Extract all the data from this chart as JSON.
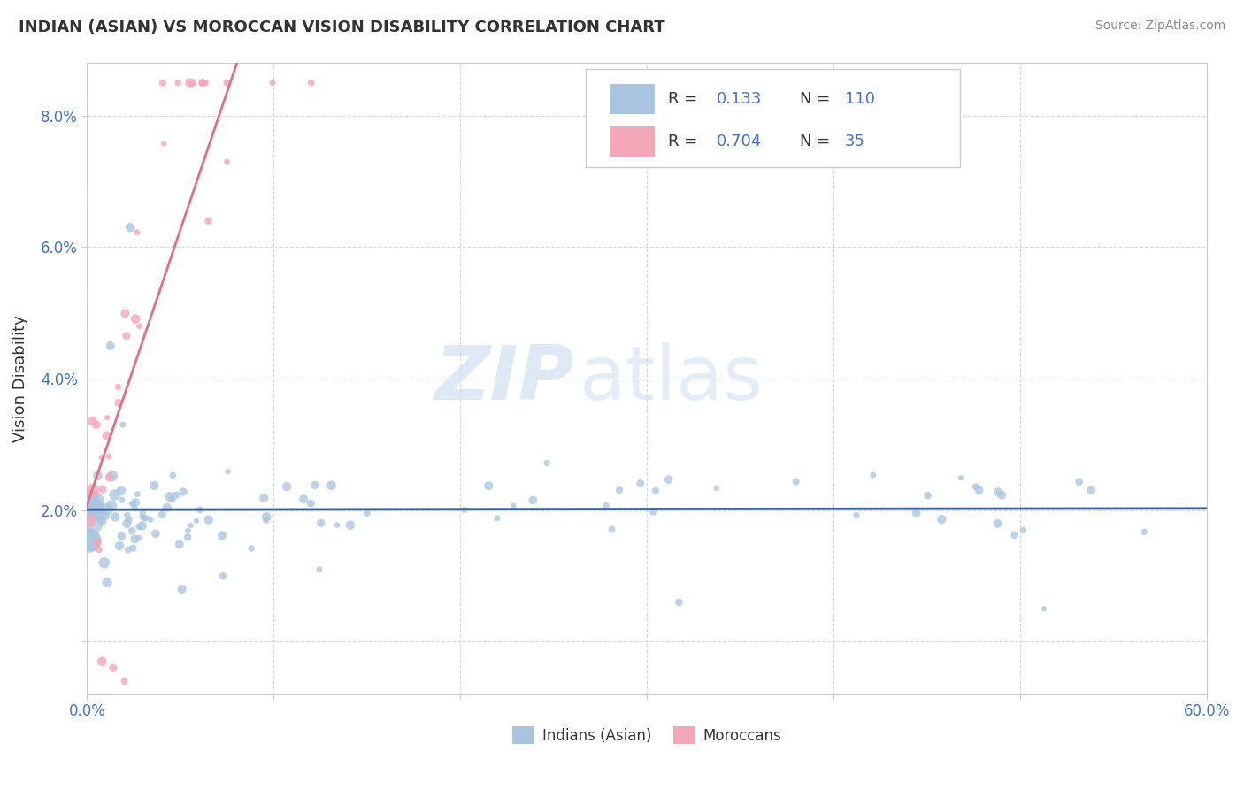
{
  "title": "INDIAN (ASIAN) VS MOROCCAN VISION DISABILITY CORRELATION CHART",
  "source": "Source: ZipAtlas.com",
  "ylabel": "Vision Disability",
  "xlim": [
    0.0,
    0.6
  ],
  "ylim": [
    -0.008,
    0.088
  ],
  "yticks": [
    0.0,
    0.02,
    0.04,
    0.06,
    0.08
  ],
  "ytick_labels": [
    "",
    "2.0%",
    "4.0%",
    "6.0%",
    "8.0%"
  ],
  "xticks": [
    0.0,
    0.1,
    0.2,
    0.3,
    0.4,
    0.5,
    0.6
  ],
  "xtick_labels": [
    "0.0%",
    "",
    "",
    "",
    "",
    "",
    "60.0%"
  ],
  "indian_color": "#a8c4e0",
  "moroccan_color": "#f4a7b9",
  "indian_line_color": "#3a5fa0",
  "moroccan_line_color": "#e07080",
  "watermark_zip": "ZIP",
  "watermark_atlas": "atlas",
  "legend_R_indian": "0.133",
  "legend_N_indian": "110",
  "legend_R_moroccan": "0.704",
  "legend_N_moroccan": "35",
  "text_color": "#4472c4",
  "title_color": "#333333",
  "grid_color": "#d0d0d0",
  "spine_color": "#cccccc"
}
